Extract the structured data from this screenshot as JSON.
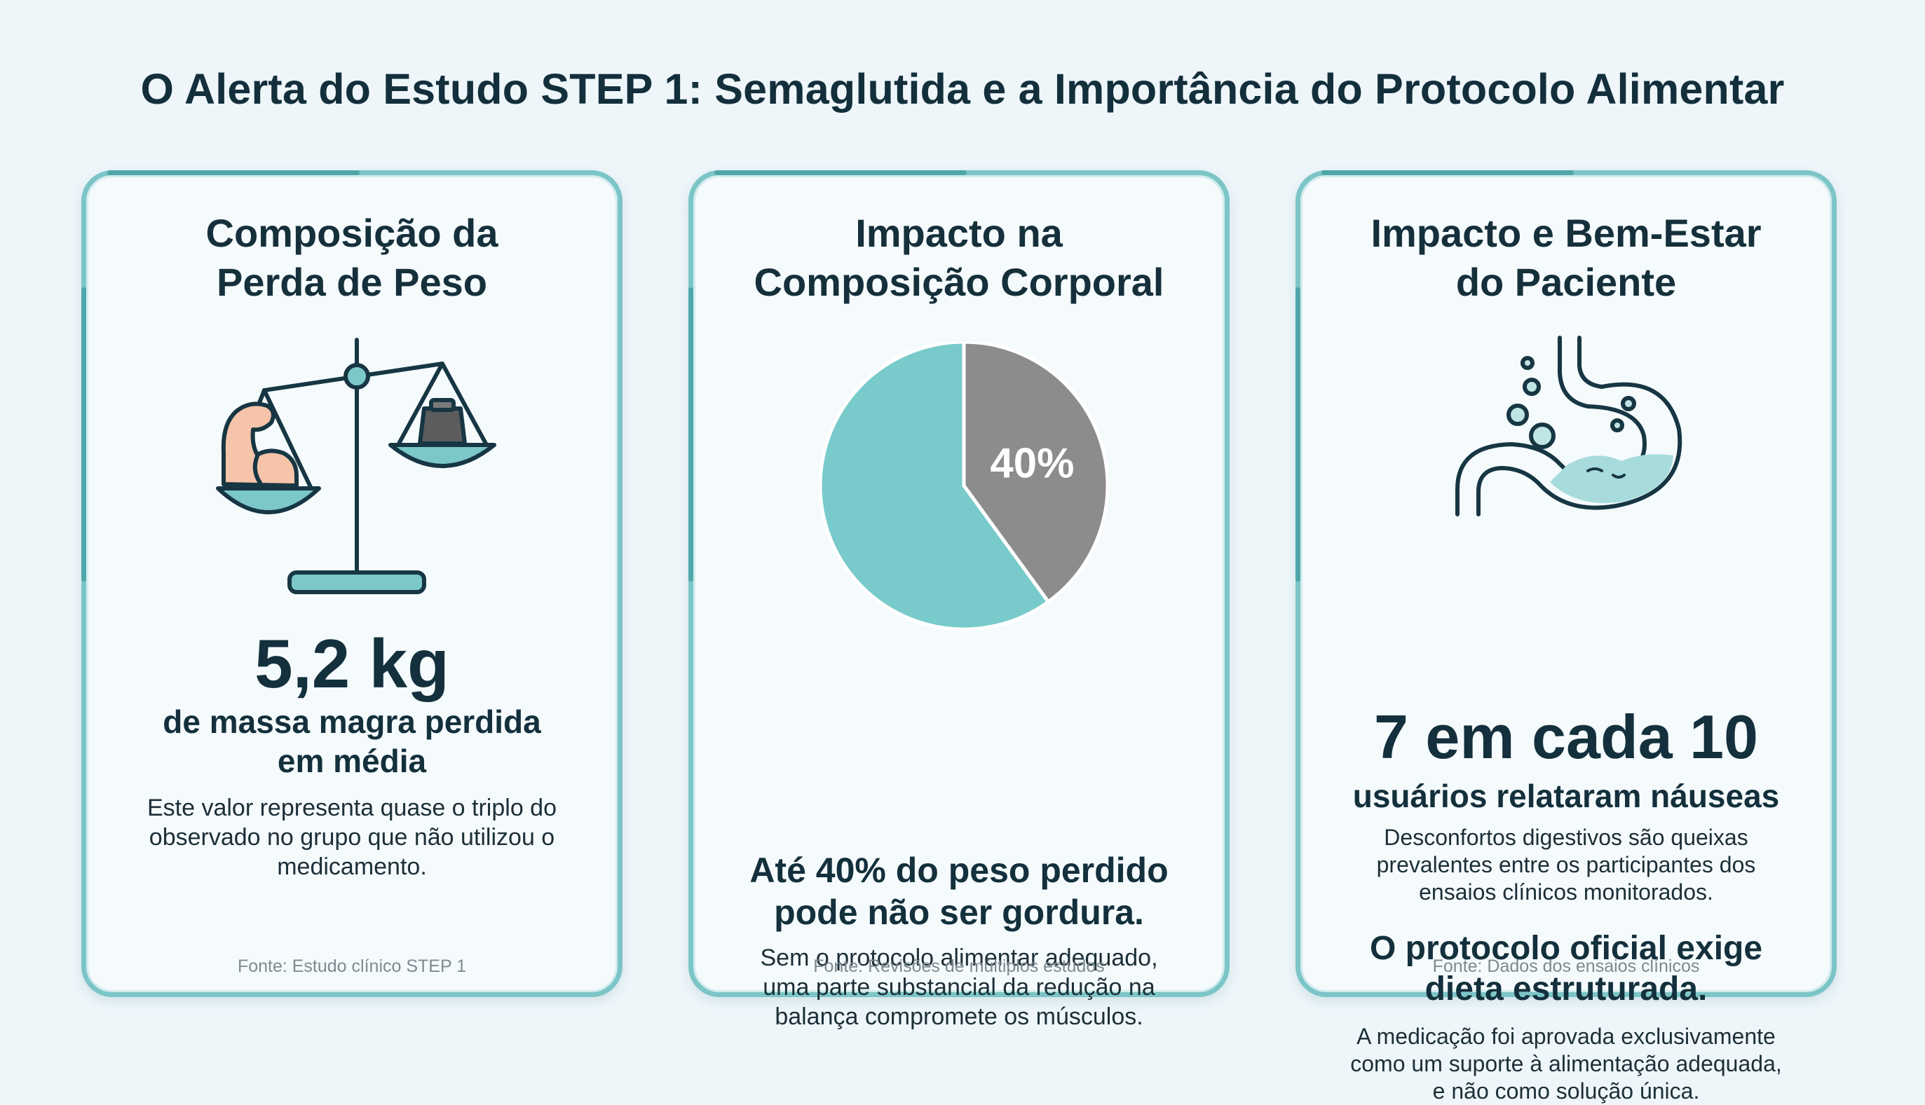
{
  "title": "O Alerta do Estudo STEP 1: Semaglutida e a Importância do Protocolo Alimentar",
  "cards": [
    {
      "title_line1": "Composição da",
      "title_line2": "Perda de Peso",
      "icon": "balance-scale-icon",
      "stat": "5,2 kg",
      "stat_label_line1": "de massa magra perdida",
      "stat_label_line2": "em média",
      "description_line1": "Este valor representa quase o triplo do",
      "description_line2": "observado no grupo que não utilizou o",
      "description_line3": "medicamento.",
      "source": "Fonte: Estudo clínico STEP 1"
    },
    {
      "title_line1": "Impacto na",
      "title_line2": "Composição Corporal",
      "pie": {
        "percent": 40,
        "label": "40%",
        "highlight_color": "#8c8c8c",
        "base_color": "#79cbcb"
      },
      "headline_line1": "Até 40% do peso perdido",
      "headline_line2": "pode não ser gordura.",
      "description_line1": "Sem o protocolo alimentar adequado,",
      "description_line2": "uma parte substancial da redução na",
      "description_line3": "balança compromete os músculos.",
      "source": "Fonte: Revisões de múltiplos estudos"
    },
    {
      "title_line1": "Impacto e Bem-Estar",
      "title_line2": "do Paciente",
      "icon": "stomach-icon",
      "stat": "7 em cada 10",
      "stat_label": "usuários relataram náuseas",
      "description1_line1": "Desconfortos digestivos são queixas",
      "description1_line2": "prevalentes entre os participantes dos",
      "description1_line3": "ensaios clínicos monitorados.",
      "headline_line1": "O protocolo oficial exige",
      "headline_line2": "dieta estruturada.",
      "description2_line1": "A medicação foi aprovada exclusivamente",
      "description2_line2": "como um suporte à alimentação adequada,",
      "description2_line3": "e não como solução única.",
      "source": "Fonte: Dados dos ensaios clínicos"
    }
  ],
  "colors": {
    "accent": "#79cbcb",
    "border": "#7cc5c7",
    "text": "#13303c"
  }
}
